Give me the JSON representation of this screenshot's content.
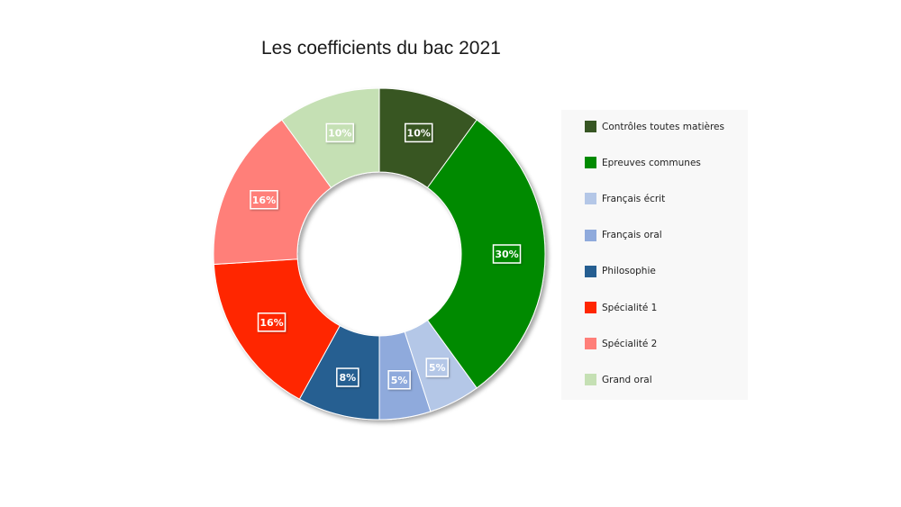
{
  "chart_data": {
    "type": "pie",
    "variant": "donut",
    "title": "Les coefficients du bac 2021",
    "legend_position": "right",
    "slices": [
      {
        "name": "Contrôles toutes matières",
        "value": 10,
        "label": "10%",
        "color": "#375623"
      },
      {
        "name": "Epreuves communes",
        "value": 30,
        "label": "30%",
        "color": "#008a00"
      },
      {
        "name": "Français écrit",
        "value": 5,
        "label": "5%",
        "color": "#b4c7e7"
      },
      {
        "name": "Français oral",
        "value": 5,
        "label": "5%",
        "color": "#8faadc"
      },
      {
        "name": "Philosophie",
        "value": 8,
        "label": "8%",
        "color": "#255e91"
      },
      {
        "name": "Spécialité 1",
        "value": 16,
        "label": "16%",
        "color": "#ff2600"
      },
      {
        "name": "Spécialité 2",
        "value": 16,
        "label": "16%",
        "color": "#ff7f79"
      },
      {
        "name": "Grand oral",
        "value": 10,
        "label": "10%",
        "color": "#c5e0b4"
      }
    ]
  }
}
